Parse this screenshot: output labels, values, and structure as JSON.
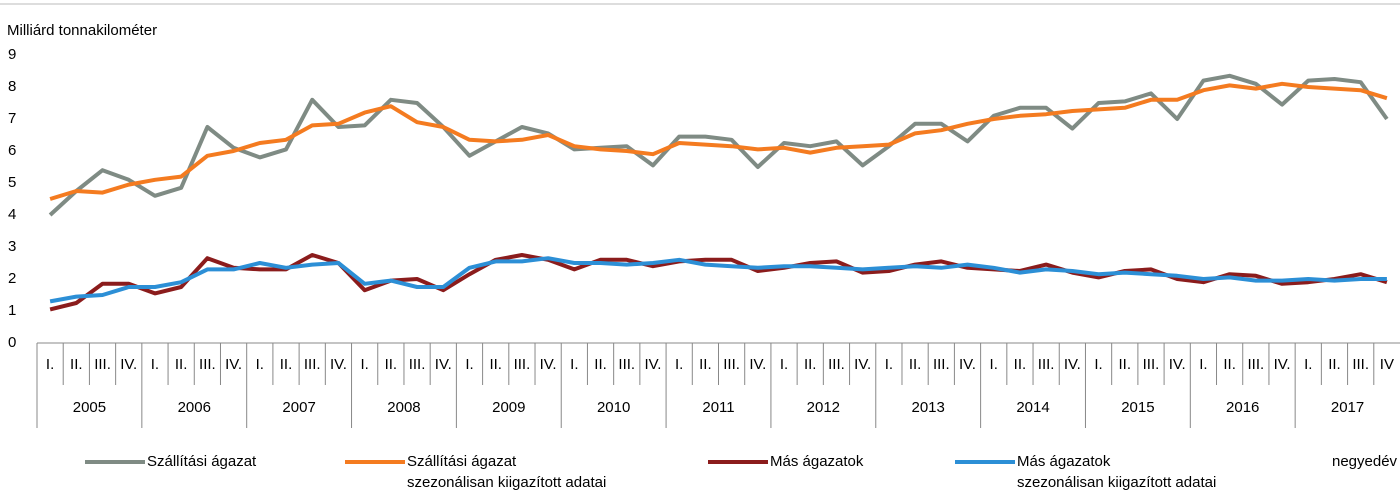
{
  "chart_data": {
    "type": "line",
    "y_axis_label": "Milliárd tonnakilométer",
    "x_axis_label": "negyedév",
    "categories": [
      "I.",
      "II.",
      "III.",
      "IV.",
      "I.",
      "II.",
      "III.",
      "IV.",
      "I.",
      "II.",
      "III.",
      "IV.",
      "I.",
      "II.",
      "III.",
      "IV.",
      "I.",
      "II.",
      "III.",
      "IV.",
      "I.",
      "II.",
      "III.",
      "IV.",
      "I.",
      "II.",
      "III.",
      "IV.",
      "I.",
      "II.",
      "III.",
      "IV.",
      "I.",
      "II.",
      "III.",
      "IV.",
      "I.",
      "II.",
      "III.",
      "IV.",
      "I.",
      "II.",
      "III.",
      "IV.",
      "I.",
      "II.",
      "III.",
      "IV.",
      "I.",
      "II.",
      "III.",
      "IV"
    ],
    "years": [
      "2005",
      "2006",
      "2007",
      "2008",
      "2009",
      "2010",
      "2011",
      "2012",
      "2013",
      "2014",
      "2015",
      "2016",
      "2017"
    ],
    "ylim": [
      0,
      9
    ],
    "yticks": [
      0,
      1,
      2,
      3,
      4,
      5,
      6,
      7,
      8,
      9
    ],
    "grid": false,
    "series": [
      {
        "name": "Szállítási ágazat",
        "color": "#7f8b84",
        "values": [
          4.0,
          4.75,
          5.4,
          5.1,
          4.6,
          4.85,
          6.75,
          6.1,
          5.8,
          6.05,
          7.6,
          6.75,
          6.8,
          7.6,
          7.5,
          6.75,
          5.85,
          6.3,
          6.75,
          6.55,
          6.05,
          6.1,
          6.15,
          5.55,
          6.45,
          6.45,
          6.35,
          5.5,
          6.25,
          6.15,
          6.3,
          5.55,
          6.15,
          6.85,
          6.85,
          6.3,
          7.1,
          7.35,
          7.35,
          6.7,
          7.5,
          7.55,
          7.8,
          7.0,
          8.2,
          8.35,
          8.1,
          7.45,
          8.2,
          8.25,
          8.15,
          7.0
        ]
      },
      {
        "name": "Szállítási ágazat\nszezonálisan kiigazított adatai",
        "color": "#f47b20",
        "values": [
          4.5,
          4.75,
          4.7,
          4.95,
          5.1,
          5.2,
          5.85,
          6.0,
          6.25,
          6.35,
          6.8,
          6.85,
          7.2,
          7.4,
          6.9,
          6.75,
          6.35,
          6.3,
          6.35,
          6.5,
          6.15,
          6.05,
          6.0,
          5.9,
          6.25,
          6.2,
          6.15,
          6.05,
          6.1,
          5.95,
          6.1,
          6.15,
          6.2,
          6.55,
          6.65,
          6.85,
          7.0,
          7.1,
          7.15,
          7.25,
          7.3,
          7.35,
          7.6,
          7.6,
          7.9,
          8.05,
          7.95,
          8.1,
          8.0,
          7.95,
          7.9,
          7.65
        ]
      },
      {
        "name": "Más ágazatok",
        "color": "#8b1c1c",
        "values": [
          1.05,
          1.25,
          1.85,
          1.85,
          1.55,
          1.75,
          2.65,
          2.35,
          2.3,
          2.3,
          2.75,
          2.5,
          1.65,
          1.95,
          2.0,
          1.65,
          2.15,
          2.6,
          2.75,
          2.6,
          2.3,
          2.6,
          2.6,
          2.4,
          2.55,
          2.6,
          2.6,
          2.25,
          2.35,
          2.5,
          2.55,
          2.2,
          2.25,
          2.45,
          2.55,
          2.35,
          2.3,
          2.25,
          2.45,
          2.2,
          2.05,
          2.25,
          2.3,
          2.0,
          1.9,
          2.15,
          2.1,
          1.85,
          1.9,
          2.0,
          2.15,
          1.9
        ]
      },
      {
        "name": "Más ágazatok\nszezonálisan kiigazított adatai",
        "color": "#2c8fd6",
        "values": [
          1.3,
          1.45,
          1.5,
          1.75,
          1.75,
          1.9,
          2.3,
          2.3,
          2.5,
          2.35,
          2.45,
          2.5,
          1.85,
          1.95,
          1.75,
          1.75,
          2.35,
          2.55,
          2.55,
          2.65,
          2.5,
          2.5,
          2.45,
          2.5,
          2.6,
          2.45,
          2.4,
          2.35,
          2.4,
          2.4,
          2.35,
          2.3,
          2.35,
          2.4,
          2.35,
          2.45,
          2.35,
          2.2,
          2.3,
          2.25,
          2.15,
          2.2,
          2.15,
          2.1,
          2.0,
          2.05,
          1.95,
          1.95,
          2.0,
          1.95,
          2.0,
          2.0
        ]
      }
    ]
  }
}
